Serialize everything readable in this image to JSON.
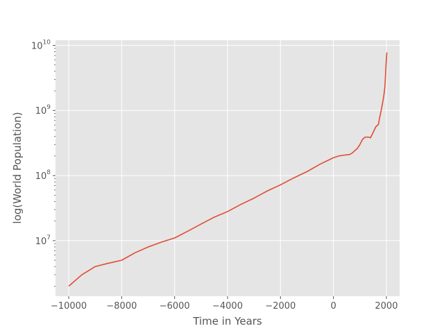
{
  "chart_data": {
    "type": "line",
    "title": "",
    "xlabel": "Time in Years",
    "ylabel": "log(World Population)",
    "xlim": [
      -10500,
      2500
    ],
    "ylim": [
      1400000,
      12000000000
    ],
    "yscale": "log",
    "grid": true,
    "style": "ggplot",
    "colors": {
      "background": "#e5e5e5",
      "grid": "#ffffff",
      "line": "#e24a33",
      "text": "#555555"
    },
    "x_ticks": [
      -10000,
      -8000,
      -6000,
      -4000,
      -2000,
      0,
      2000
    ],
    "x_tick_labels": [
      "−10000",
      "−8000",
      "−6000",
      "−4000",
      "−2000",
      "0",
      "2000"
    ],
    "y_ticks": [
      {
        "value": 10000000,
        "base": "10",
        "exp": "7"
      },
      {
        "value": 100000000,
        "base": "10",
        "exp": "8"
      },
      {
        "value": 1000000000,
        "base": "10",
        "exp": "9"
      },
      {
        "value": 10000000000,
        "base": "10",
        "exp": "10"
      }
    ],
    "series": [
      {
        "x": [
          -10000,
          -9500,
          -9000,
          -8500,
          -8000,
          -7500,
          -7000,
          -6500,
          -6000,
          -5500,
          -5000,
          -4500,
          -4000,
          -3500,
          -3000,
          -2500,
          -2000,
          -1500,
          -1000,
          -500,
          0,
          200,
          400,
          500,
          600,
          700,
          800,
          900,
          1000,
          1100,
          1200,
          1300,
          1340,
          1400,
          1500,
          1600,
          1700,
          1750,
          1800,
          1850,
          1900,
          1927,
          1950,
          1960,
          1970,
          1980,
          1990,
          2000,
          2010,
          2020
        ],
        "y": [
          2000000,
          3000000,
          4000000,
          4500000,
          5000000,
          6500000,
          8000000,
          9500000,
          11000000,
          14000000,
          18000000,
          23000000,
          28000000,
          36000000,
          45000000,
          58000000,
          72000000,
          92000000,
          115000000,
          150000000,
          188000000,
          200000000,
          206000000,
          208000000,
          210000000,
          220000000,
          240000000,
          260000000,
          300000000,
          360000000,
          390000000,
          390000000,
          390000000,
          380000000,
          460000000,
          560000000,
          610000000,
          790000000,
          980000000,
          1260000000,
          1650000000,
          2000000000,
          2500000000,
          3000000000,
          3700000000,
          4400000000,
          5300000000,
          6100000000,
          6900000000,
          7800000000
        ]
      }
    ]
  }
}
